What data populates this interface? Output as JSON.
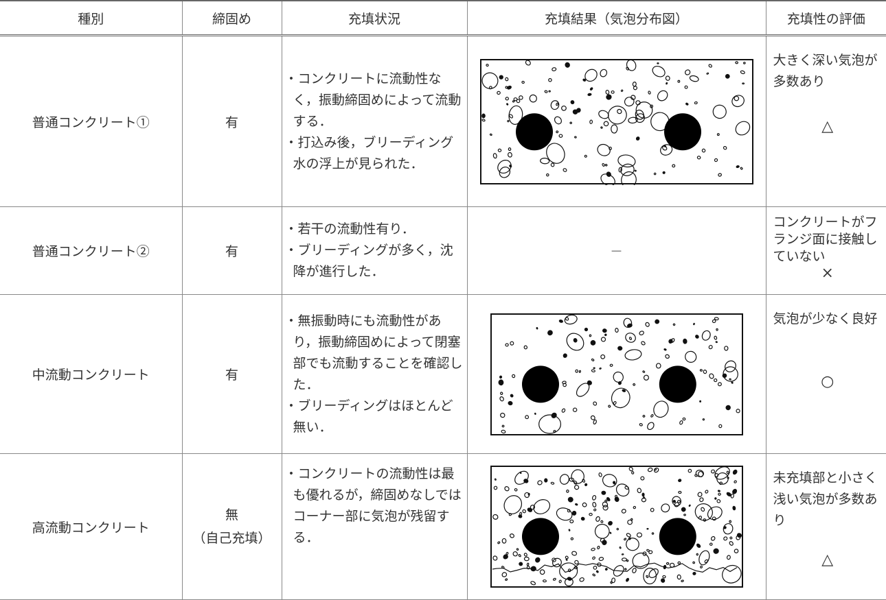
{
  "header": {
    "columns": [
      "種別",
      "締固め",
      "充填状況",
      "充填結果（気泡分布図）",
      "充填性の評価"
    ]
  },
  "rows": [
    {
      "type": "普通コンクリート①",
      "compaction": [
        "有"
      ],
      "status": [
        "・コンクリートに流動性なく，振動締固めによって流動する．",
        "・打込み後，ブリーディング水の浮上が見られた．"
      ],
      "evaluation": "大きく深い気泡が多数あり",
      "rating": "△"
    },
    {
      "type": "普通コンクリート②",
      "compaction": [
        "有"
      ],
      "status": [
        "・若干の流動性有り．",
        "・ブリーディングが多く，沈降が進行した．"
      ],
      "result": "－",
      "evaluation": "コンクリートがフランジ面に接触していない",
      "rating": "×"
    },
    {
      "type": "中流動コンクリート",
      "compaction": [
        "有"
      ],
      "status": [
        "・無振動時にも流動性があり，振動締固めによって閉塞部でも流動することを確認した．",
        "・ブリーディングはほとんど無い．"
      ],
      "evaluation": "気泡が少なく良好",
      "rating": "○"
    },
    {
      "type": "高流動コンクリート",
      "compaction": [
        "無",
        "（自己充填）"
      ],
      "status": [
        "・コンクリートの流動性は最も優れるが，締固めなしではコーナー部に気泡が残留する．"
      ],
      "evaluation": "未充填部と小さく浅い気泡が多数あり",
      "rating": "△"
    }
  ]
}
